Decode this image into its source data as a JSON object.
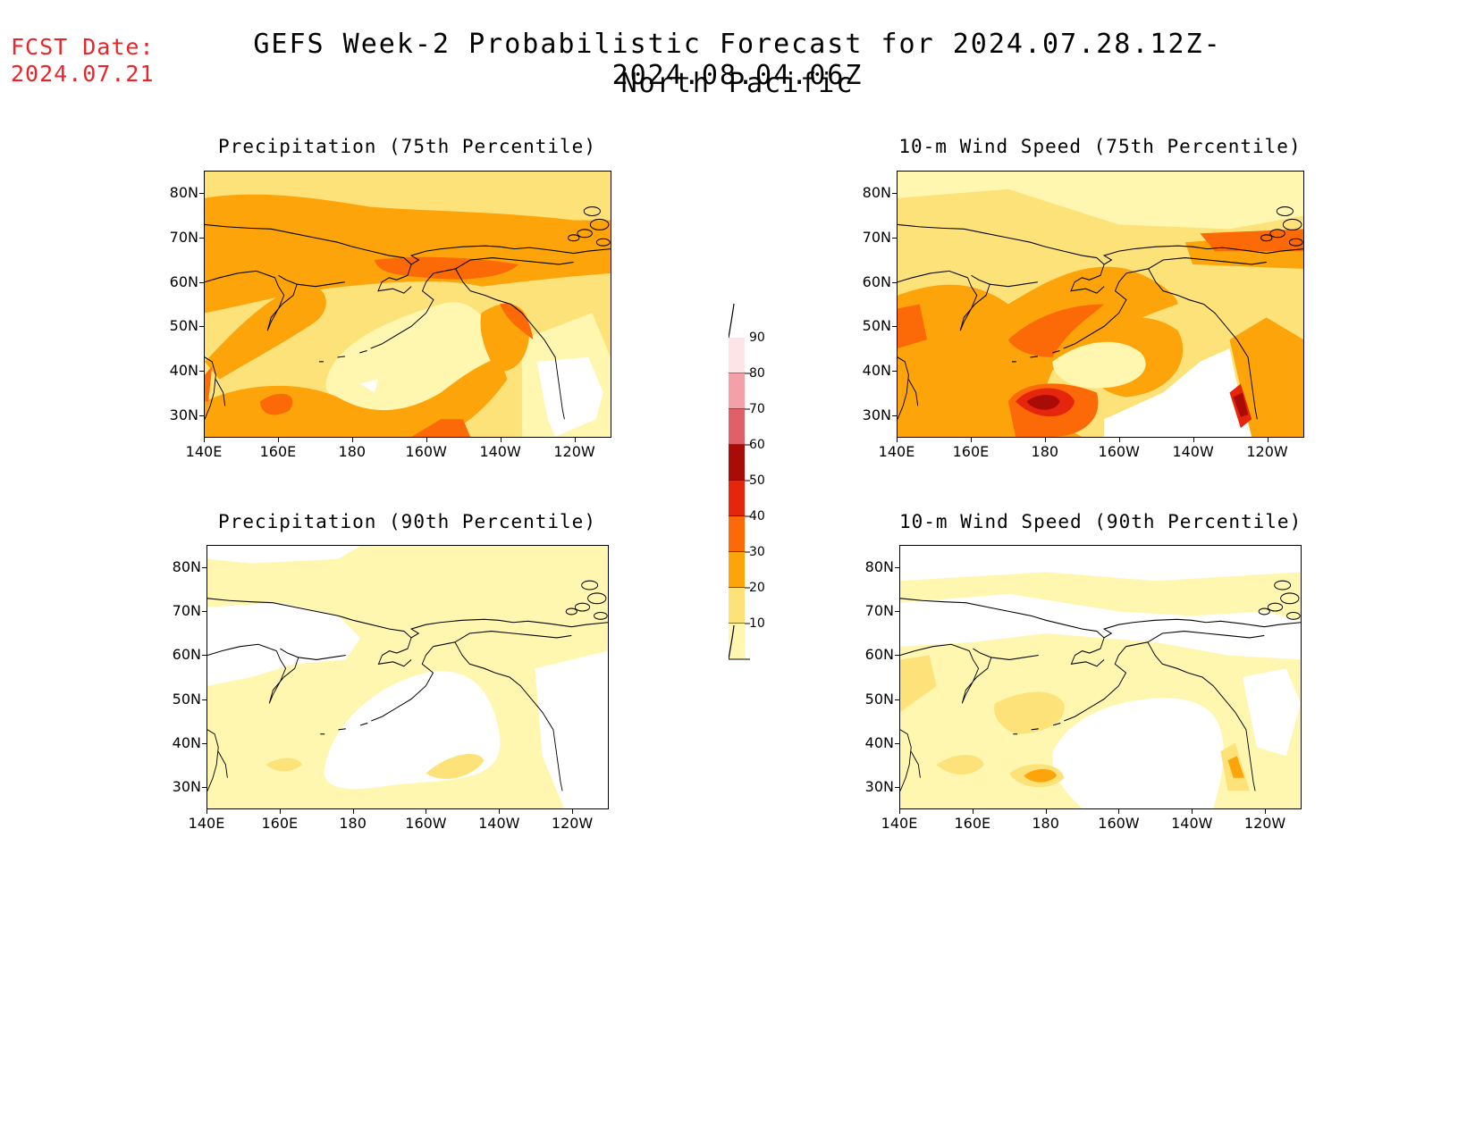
{
  "fcst_date": {
    "label": "FCST Date:",
    "value": "2024.07.21"
  },
  "title": {
    "line1": "GEFS Week-2 Probabilistic Forecast for 2024.07.28.12Z-2024.08.04.06Z",
    "line2": "North Pacific"
  },
  "axes": {
    "lat_labels": [
      "80N",
      "70N",
      "60N",
      "50N",
      "40N",
      "30N"
    ],
    "lon_labels": [
      "140E",
      "160E",
      "180",
      "160W",
      "140W",
      "120W"
    ]
  },
  "panels": [
    {
      "id": "precip75",
      "title": "Precipitation (75th Percentile)"
    },
    {
      "id": "wind75",
      "title": "10-m Wind Speed (75th Percentile)"
    },
    {
      "id": "precip90",
      "title": "Precipitation (90th Percentile)"
    },
    {
      "id": "wind90",
      "title": "10-m Wind Speed (90th Percentile)"
    }
  ],
  "colorbar": {
    "levels": [
      "90",
      "80",
      "70",
      "60",
      "50",
      "40",
      "30",
      "20",
      "10"
    ],
    "colors": {
      "10": "#fff7b0",
      "20": "#fde27a",
      "30": "#fca40a",
      "40": "#fb6a06",
      "50": "#e5260c",
      "60": "#a90c06",
      "70": "#e0606a",
      "80": "#f4a0a8",
      "90": "#fde4e6"
    }
  },
  "colors": {
    "fcst_date": "#e8262a"
  }
}
